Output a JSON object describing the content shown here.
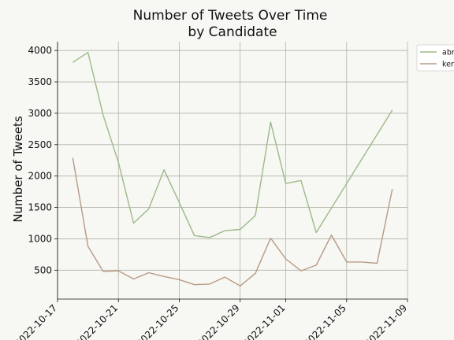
{
  "chart_data": {
    "type": "line",
    "title": "Number of Tweets Over Time",
    "subtitle": "by Candidate",
    "xlabel": "",
    "ylabel": "Number of Tweets",
    "x_ticks": [
      "2022-10-17",
      "2022-10-21",
      "2022-10-25",
      "2022-10-29",
      "2022-11-01",
      "2022-11-05",
      "2022-11-09"
    ],
    "y_ticks": [
      500,
      1000,
      1500,
      2000,
      2500,
      3000,
      3500,
      4000
    ],
    "xlim": [
      "2022-10-17",
      "2022-11-09"
    ],
    "ylim": [
      40,
      4140
    ],
    "grid": true,
    "legend_position": "upper-right-outside",
    "x": [
      "2022-10-18",
      "2022-10-19",
      "2022-10-20",
      "2022-10-21",
      "2022-10-22",
      "2022-10-23",
      "2022-10-24",
      "2022-10-25",
      "2022-10-26",
      "2022-10-27",
      "2022-10-28",
      "2022-10-29",
      "2022-10-30",
      "2022-10-31",
      "2022-11-01",
      "2022-11-02",
      "2022-11-03",
      "2022-11-04",
      "2022-11-05",
      "2022-11-06",
      "2022-11-07",
      "2022-11-08"
    ],
    "series": [
      {
        "name": "abr",
        "color": "#9dba88",
        "values": [
          3810,
          3970,
          2970,
          2220,
          1250,
          1480,
          2100,
          1580,
          1050,
          1020,
          1130,
          1150,
          1370,
          2860,
          1880,
          1930,
          1100,
          1490,
          1880,
          2270,
          2660,
          3050
        ]
      },
      {
        "name": "ker",
        "color": "#b89a85",
        "values": [
          2290,
          880,
          480,
          490,
          360,
          460,
          400,
          350,
          270,
          280,
          390,
          250,
          450,
          1010,
          680,
          490,
          580,
          1060,
          630,
          630,
          610,
          1790
        ]
      }
    ]
  }
}
